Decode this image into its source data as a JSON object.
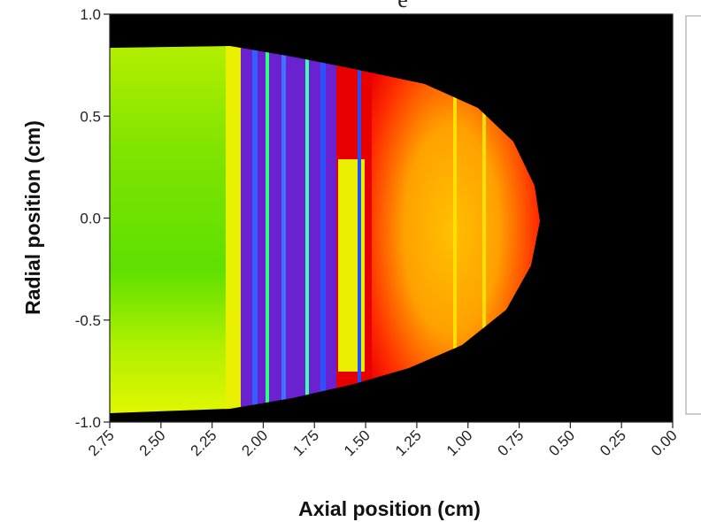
{
  "chart_data": {
    "type": "heatmap",
    "title": "e",
    "x_label": "Axial position (cm)",
    "y_label": "Radial position (cm)",
    "xlim": [
      2.75,
      0
    ],
    "ylim": [
      -1,
      1
    ],
    "xticks": [
      2.75,
      {
        "value": 2.5,
        "label": "2.50"
      },
      2.25,
      {
        "value": 2,
        "label": "2.00"
      },
      1.75,
      {
        "value": 1.5,
        "label": "1.50"
      },
      1.25,
      {
        "value": 1,
        "label": "1.00"
      },
      0.75,
      {
        "value": 0.5,
        "label": "0.50"
      },
      0.25,
      {
        "value": 0,
        "label": "0.00"
      }
    ],
    "yticks": [
      {
        "value": -1,
        "label": "-1.0"
      },
      -0.5,
      {
        "value": 0,
        "label": "0.0"
      },
      0.5,
      {
        "value": 1,
        "label": "1.0"
      }
    ]
  }
}
